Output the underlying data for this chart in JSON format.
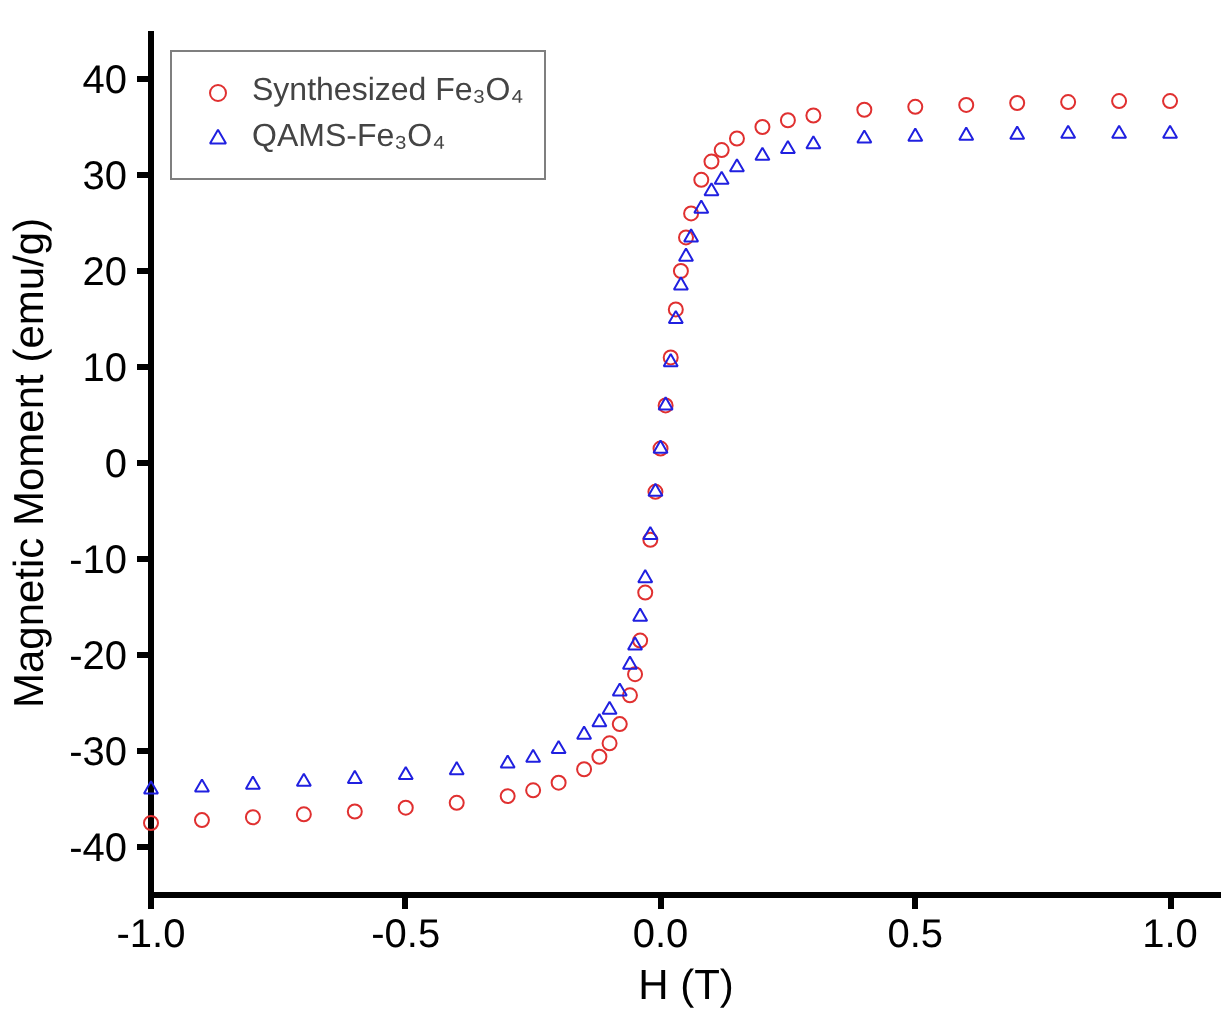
{
  "chart_data": {
    "type": "scatter",
    "xlabel": "H (T)",
    "ylabel": "Magnetic Moment (emu/g)",
    "x": [
      -1,
      -0.9,
      -0.8,
      -0.7,
      -0.6,
      -0.5,
      -0.4,
      -0.3,
      -0.25,
      -0.2,
      -0.15,
      -0.12,
      -0.1,
      -0.08,
      -0.06,
      -0.05,
      -0.04,
      -0.03,
      -0.02,
      -0.01,
      0,
      0.01,
      0.02,
      0.03,
      0.04,
      0.05,
      0.06,
      0.08,
      0.1,
      0.12,
      0.15,
      0.2,
      0.25,
      0.3,
      0.4,
      0.5,
      0.6,
      0.7,
      0.8,
      0.9,
      1.0
    ],
    "series": [
      {
        "name": "Synthesized Fe₃O₄",
        "color": "#e03030",
        "marker": "circle",
        "values": [
          -37.5,
          -37.2,
          -36.9,
          -36.6,
          -36.3,
          -35.9,
          -35.4,
          -34.7,
          -34.1,
          -33.3,
          -31.9,
          -30.6,
          -29.2,
          -27.2,
          -24.2,
          -22,
          -18.5,
          -13.5,
          -8,
          -3,
          1.5,
          6,
          11,
          16,
          20,
          23.5,
          26,
          29.5,
          31.4,
          32.6,
          33.8,
          35,
          35.7,
          36.2,
          36.8,
          37.1,
          37.3,
          37.5,
          37.6,
          37.7,
          37.7
        ]
      },
      {
        "name": "QAMS-Fe₃O₄",
        "color": "#2020e0",
        "marker": "triangle",
        "values": [
          -34,
          -33.8,
          -33.5,
          -33.2,
          -32.9,
          -32.5,
          -32,
          -31.3,
          -30.7,
          -29.8,
          -28.3,
          -27,
          -25.7,
          -23.8,
          -21,
          -19,
          -16,
          -12,
          -7.5,
          -3,
          1.5,
          6,
          10.5,
          15,
          18.5,
          21.5,
          23.5,
          26.5,
          28.3,
          29.5,
          30.8,
          32,
          32.7,
          33.2,
          33.8,
          34.0,
          34.1,
          34.2,
          34.3,
          34.3,
          34.3
        ]
      }
    ],
    "xlim": [
      -1.0,
      1.1
    ],
    "xticks": [
      {
        "value": -1.0,
        "label": "-1.0"
      },
      {
        "value": -0.5,
        "label": "-0.5"
      },
      {
        "value": 0,
        "label": "0.0"
      },
      {
        "value": 0.5,
        "label": "0.5"
      },
      {
        "value": 1.0,
        "label": "1.0"
      }
    ],
    "ylim": [
      -45,
      45
    ],
    "yticks": [
      -40,
      -30,
      -20,
      -10,
      0,
      10,
      20,
      30,
      40
    ],
    "grid": false,
    "legend": "top left"
  }
}
